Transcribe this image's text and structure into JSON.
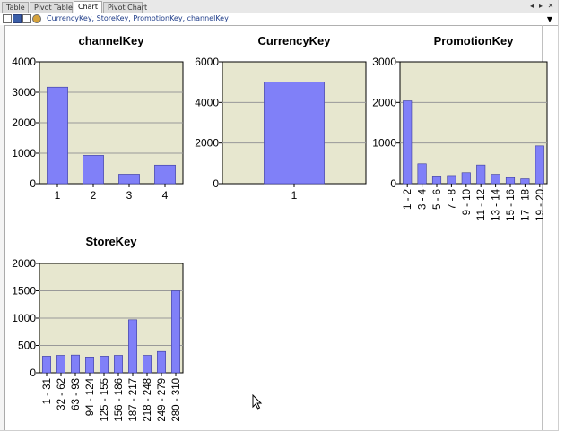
{
  "tabs": [
    {
      "label": "Table",
      "active": false
    },
    {
      "label": "Pivot Table",
      "active": false
    },
    {
      "label": "Chart",
      "active": true
    },
    {
      "label": "Pivot Chart",
      "active": false
    }
  ],
  "field_bar": {
    "fields_text": "CurrencyKey, StoreKey, PromotionKey, channelKey"
  },
  "colors": {
    "bar": "#8080f8",
    "plot_background": "#e7e7cf",
    "gridline": "#999999"
  },
  "chart_data": [
    {
      "type": "bar",
      "title": "channelKey",
      "categories": [
        "1",
        "2",
        "3",
        "4"
      ],
      "values": [
        3170,
        930,
        310,
        610
      ],
      "ylim": [
        0,
        4000
      ],
      "yticks": [
        0,
        1000,
        2000,
        3000,
        4000
      ],
      "grid": true
    },
    {
      "type": "bar",
      "title": "CurrencyKey",
      "categories": [
        "1"
      ],
      "values": [
        5000
      ],
      "ylim": [
        0,
        6000
      ],
      "yticks": [
        0,
        2000,
        4000,
        6000
      ],
      "grid": true
    },
    {
      "type": "bar",
      "title": "PromotionKey",
      "categories": [
        "1 - 2",
        "3 - 4",
        "5 - 6",
        "7 - 8",
        "9 - 10",
        "11 - 12",
        "13 - 14",
        "15 - 16",
        "17 - 18",
        "19 - 20"
      ],
      "values": [
        2040,
        490,
        190,
        200,
        270,
        460,
        230,
        150,
        120,
        930
      ],
      "ylim": [
        0,
        3000
      ],
      "yticks": [
        0,
        1000,
        2000,
        3000
      ],
      "grid": true
    },
    {
      "type": "bar",
      "title": "StoreKey",
      "categories": [
        "1 - 31",
        "32 - 62",
        "63 - 93",
        "94 - 124",
        "125 - 155",
        "156 - 186",
        "187 - 217",
        "218 - 248",
        "249 - 279",
        "280 - 310"
      ],
      "values": [
        305,
        320,
        325,
        290,
        305,
        320,
        970,
        320,
        390,
        1500
      ],
      "ylim": [
        0,
        2000
      ],
      "yticks": [
        0,
        500,
        1000,
        1500,
        2000
      ],
      "grid": true
    }
  ]
}
